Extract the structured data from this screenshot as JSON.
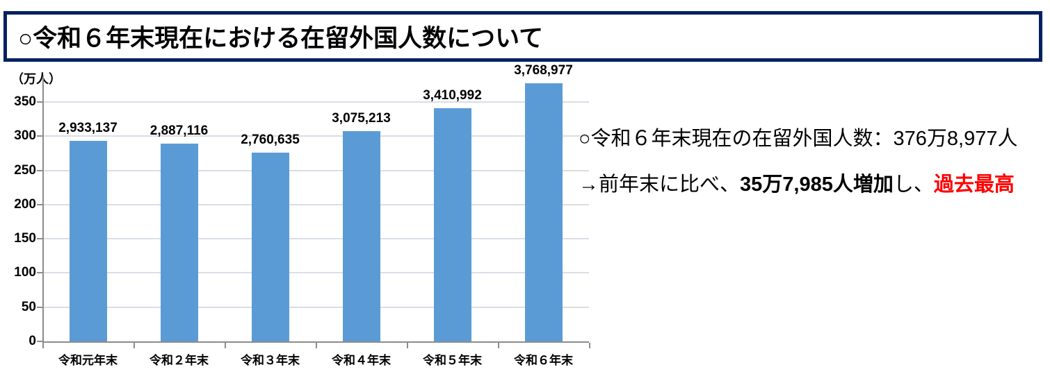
{
  "header": {
    "title": "○令和６年末現在における在留外国人数について"
  },
  "chart_data": {
    "type": "bar",
    "unit_label": "（万人）",
    "categories": [
      "令和元年末",
      "令和２年末",
      "令和３年末",
      "令和４年末",
      "令和５年末",
      "令和６年末"
    ],
    "values": [
      2933137,
      2887116,
      2760635,
      3075213,
      3410992,
      3768977
    ],
    "data_labels": [
      "2,933,137",
      "2,887,116",
      "2,760,635",
      "3,075,213",
      "3,410,992",
      "3,768,977"
    ],
    "values_unit": "persons",
    "y_axis_unit": "万人",
    "y_ticks": [
      0,
      50,
      100,
      150,
      200,
      250,
      300,
      350
    ],
    "ylim": [
      0,
      388
    ],
    "grid": true,
    "legend": "none",
    "bar_color": "#5B9BD5"
  },
  "annotation": {
    "line1": "○令和６年末現在の在留外国人数：376万8,977人",
    "line2_prefix": "→前年末に比べ、",
    "line2_increase": "35万7,985人増加",
    "line2_mid": "し、",
    "line2_record": "過去最高",
    "record_color": "#FF0000"
  },
  "colors": {
    "title_border": "#002060",
    "bar": "#5B9BD5",
    "gridline": "#D9DEE6",
    "axis": "#8C8C8C",
    "record_red": "#FF0000"
  }
}
